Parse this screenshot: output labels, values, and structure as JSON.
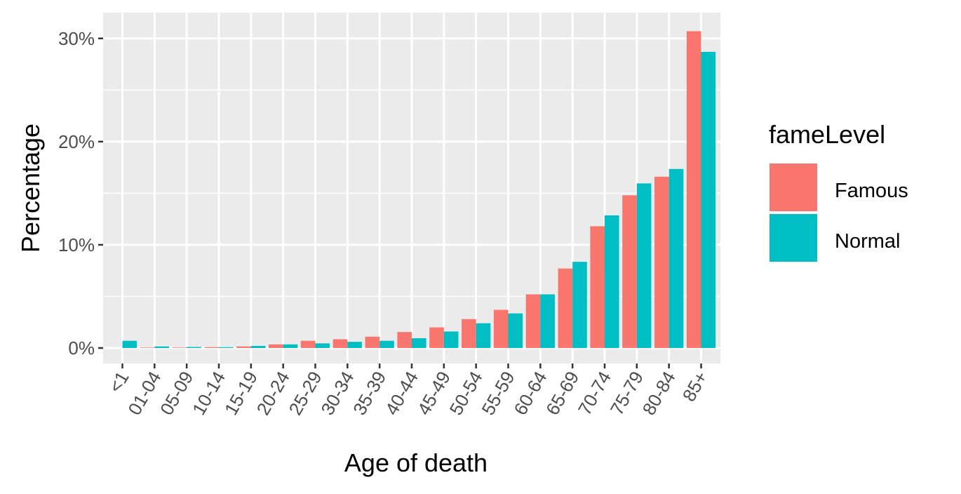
{
  "chart_data": {
    "type": "bar",
    "xlabel": "Age of death",
    "ylabel": "Percentage",
    "ylim": [
      -1.5,
      32.5
    ],
    "yticks": [
      0,
      10,
      20,
      30
    ],
    "ytick_labels": [
      "0%",
      "10%",
      "20%",
      "30%"
    ],
    "grid": true,
    "legend": {
      "title": "fameLevel",
      "placement": "right"
    },
    "categories": [
      "<1",
      "01-04",
      "05-09",
      "10-14",
      "15-19",
      "20-24",
      "25-29",
      "30-34",
      "35-39",
      "40-44",
      "45-49",
      "50-54",
      "55-59",
      "60-64",
      "65-69",
      "70-74",
      "75-79",
      "80-84",
      "85+"
    ],
    "series": [
      {
        "name": "Famous",
        "color": "#F8766D",
        "values": [
          0.0,
          0.05,
          0.05,
          0.08,
          0.15,
          0.35,
          0.7,
          0.85,
          1.1,
          1.55,
          2.0,
          2.8,
          3.7,
          5.2,
          7.7,
          11.8,
          14.8,
          16.6,
          30.7
        ]
      },
      {
        "name": "Normal",
        "color": "#00BFC4",
        "values": [
          0.7,
          0.15,
          0.1,
          0.08,
          0.2,
          0.35,
          0.45,
          0.6,
          0.7,
          0.95,
          1.6,
          2.4,
          3.35,
          5.2,
          8.35,
          12.85,
          15.95,
          17.35,
          28.7
        ]
      }
    ]
  }
}
